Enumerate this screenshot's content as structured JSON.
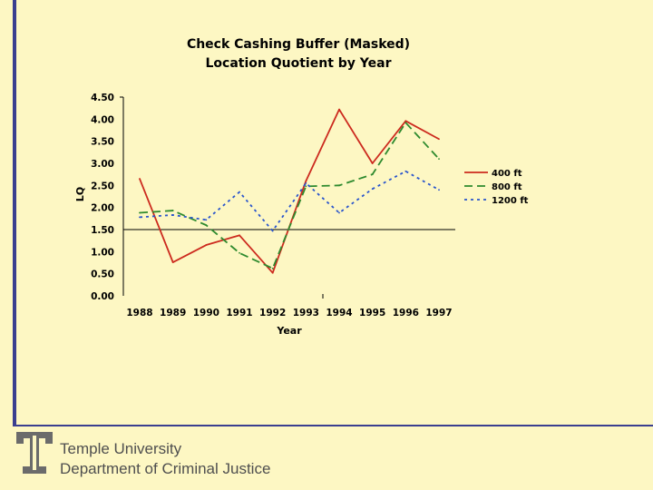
{
  "chart_data": {
    "type": "line",
    "title_lines": [
      "Check Cashing Buffer (Masked)",
      "Location Quotient by Year"
    ],
    "xlabel": "Year",
    "ylabel": "LQ",
    "categories": [
      "1988",
      "1989",
      "1990",
      "1991",
      "1992",
      "1993",
      "1994",
      "1995",
      "1996",
      "1997"
    ],
    "y_ticks": [
      "4.50",
      "4.00",
      "3.50",
      "3.00",
      "2.50",
      "2.00",
      "1.50",
      "1.00",
      "0.50",
      "0.00"
    ],
    "ylim": [
      0,
      4.5
    ],
    "reference_line": 1.5,
    "series": [
      {
        "name": "400 ft",
        "color": "#cc2a1e",
        "dash": "solid",
        "values": [
          2.65,
          0.76,
          1.15,
          1.37,
          0.52,
          2.6,
          4.22,
          3.0,
          3.96,
          3.55
        ]
      },
      {
        "name": "800 ft",
        "color": "#2e8a2e",
        "dash": "long",
        "values": [
          1.88,
          1.93,
          1.6,
          0.97,
          0.62,
          2.48,
          2.5,
          2.75,
          3.92,
          3.1
        ]
      },
      {
        "name": "1200 ft",
        "color": "#2a55cc",
        "dash": "dot",
        "values": [
          1.78,
          1.83,
          1.72,
          2.35,
          1.47,
          2.55,
          1.88,
          2.42,
          2.82,
          2.4
        ]
      }
    ]
  },
  "footer": {
    "line1": "Temple University",
    "line2": "Department of Criminal Justice",
    "logo_letter": "T"
  }
}
